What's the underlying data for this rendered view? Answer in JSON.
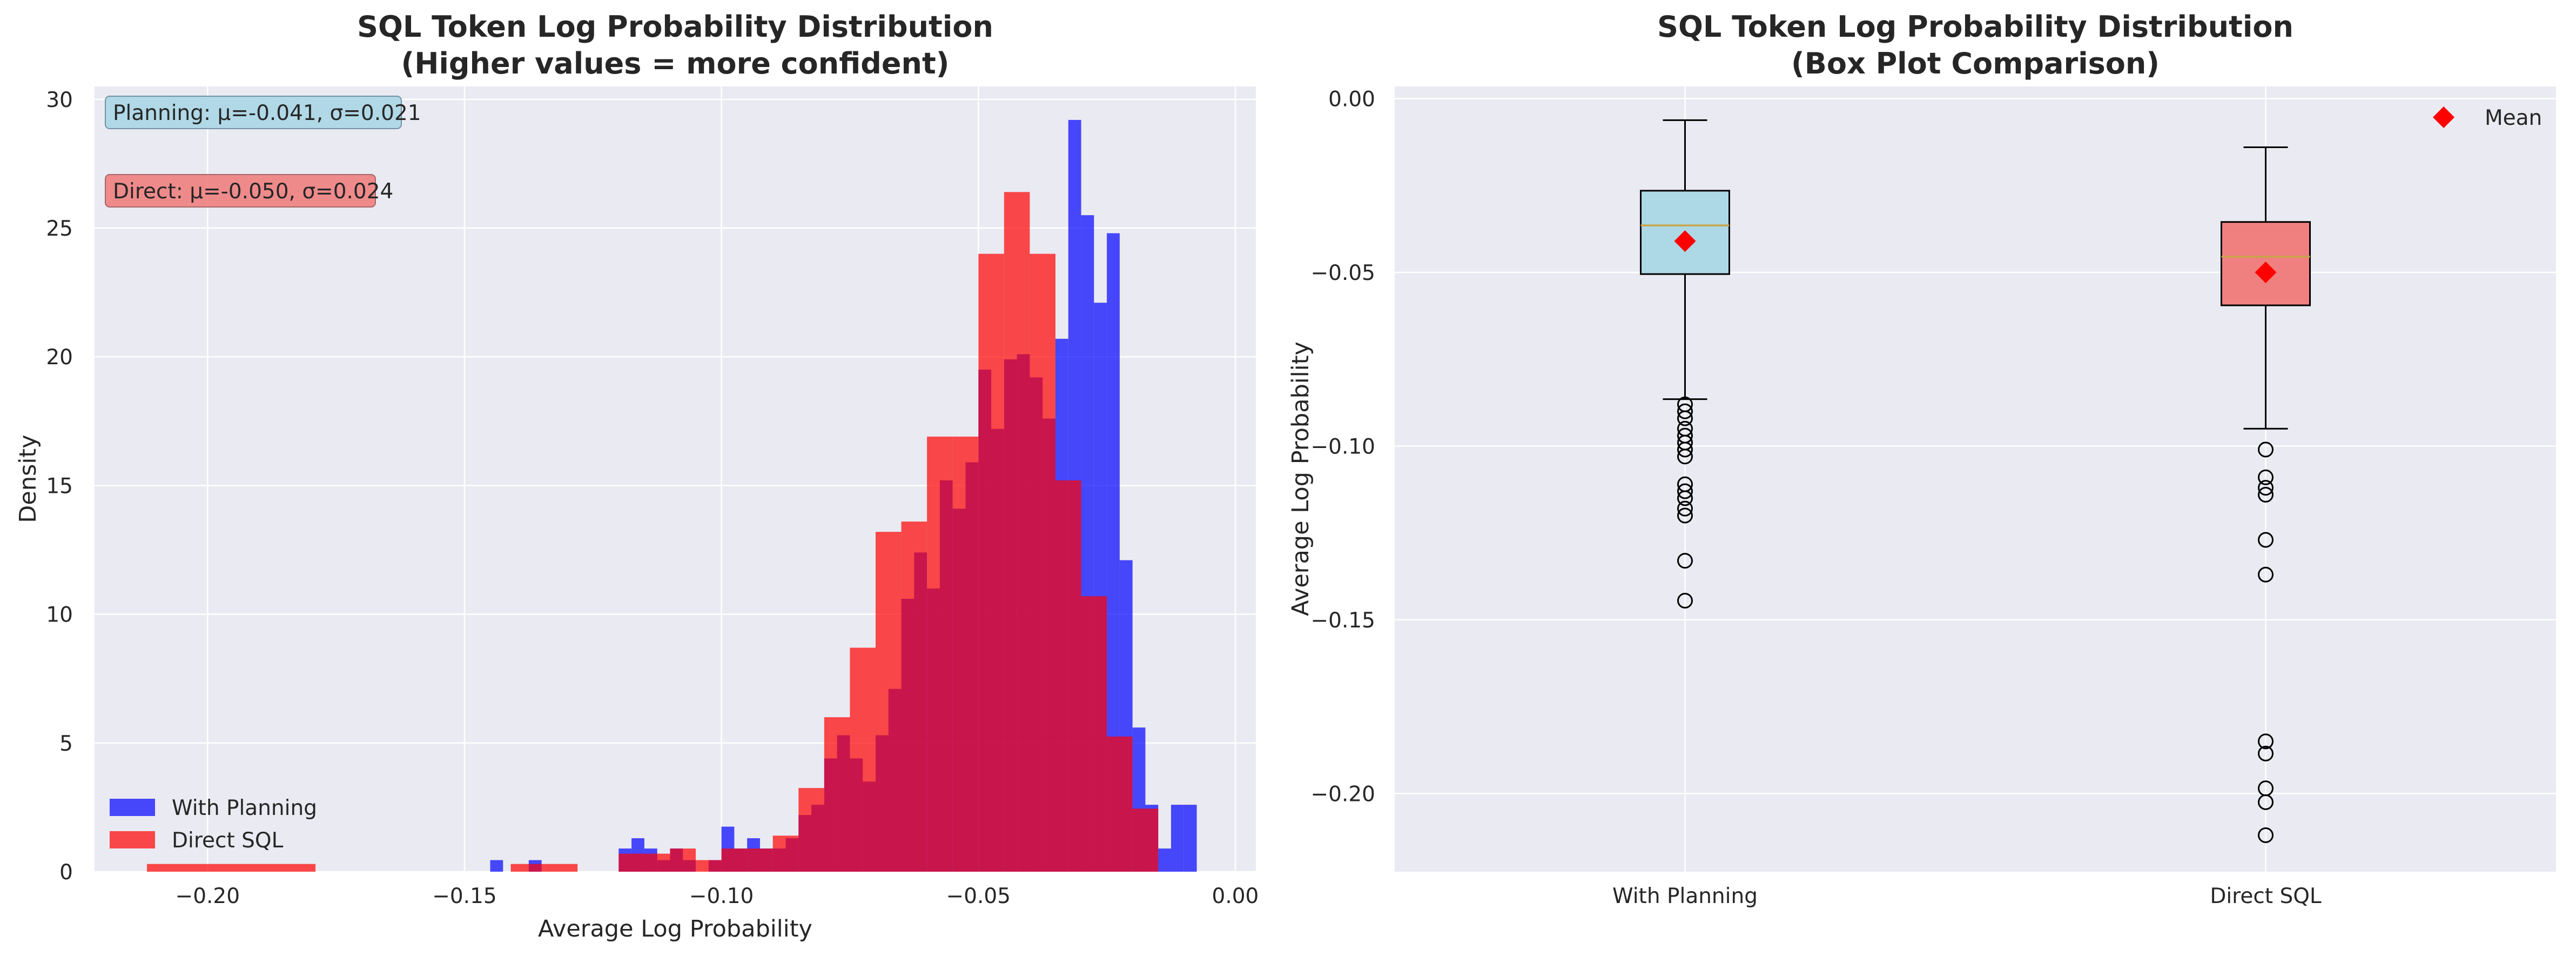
{
  "chart_data": [
    {
      "type": "histogram",
      "title": "SQL Token Log Probability Distribution",
      "subtitle": "(Higher values = more confident)",
      "xlabel": "Average Log Probability",
      "ylabel": "Density",
      "xlim": [
        -0.222,
        0.004
      ],
      "ylim": [
        0,
        30.5
      ],
      "xticks": [
        -0.2,
        -0.15,
        -0.1,
        -0.05,
        0.0
      ],
      "xtick_labels": [
        "−0.20",
        "−0.15",
        "−0.10",
        "−0.05",
        "0.00"
      ],
      "yticks": [
        0,
        5,
        10,
        15,
        20,
        25,
        30
      ],
      "ytick_labels": [
        "0",
        "5",
        "10",
        "15",
        "20",
        "25",
        "30"
      ],
      "grid": true,
      "legend_position": "lower-left",
      "annotations": [
        {
          "text": "Planning: μ=-0.041, σ=0.021",
          "color": "#add8e6"
        },
        {
          "text": "Direct: μ=-0.050, σ=0.024",
          "color": "#f08080"
        }
      ],
      "series": [
        {
          "name": "With Planning",
          "color": "#0000ff",
          "bins": [
            [
              -0.145,
              -0.1425,
              0.45
            ],
            [
              -0.1375,
              -0.135,
              0.45
            ],
            [
              -0.12,
              -0.1175,
              0.9
            ],
            [
              -0.1175,
              -0.115,
              1.3
            ],
            [
              -0.115,
              -0.1125,
              0.9
            ],
            [
              -0.1125,
              -0.11,
              0.45
            ],
            [
              -0.11,
              -0.1075,
              0.9
            ],
            [
              -0.1075,
              -0.105,
              0.45
            ],
            [
              -0.1025,
              -0.1,
              0.45
            ],
            [
              -0.1,
              -0.0975,
              1.75
            ],
            [
              -0.0975,
              -0.095,
              0.9
            ],
            [
              -0.095,
              -0.0925,
              1.3
            ],
            [
              -0.0925,
              -0.09,
              0.9
            ],
            [
              -0.09,
              -0.0875,
              0.9
            ],
            [
              -0.0875,
              -0.085,
              1.3
            ],
            [
              -0.085,
              -0.0825,
              2.2
            ],
            [
              -0.0825,
              -0.08,
              2.6
            ],
            [
              -0.08,
              -0.0775,
              4.4
            ],
            [
              -0.0775,
              -0.075,
              5.3
            ],
            [
              -0.075,
              -0.0725,
              4.4
            ],
            [
              -0.0725,
              -0.07,
              3.5
            ],
            [
              -0.07,
              -0.0675,
              5.3
            ],
            [
              -0.0675,
              -0.065,
              7.1
            ],
            [
              -0.065,
              -0.0625,
              10.6
            ],
            [
              -0.0625,
              -0.06,
              12.4
            ],
            [
              -0.06,
              -0.0575,
              11.0
            ],
            [
              -0.0575,
              -0.055,
              15.2
            ],
            [
              -0.055,
              -0.0525,
              14.1
            ],
            [
              -0.0525,
              -0.05,
              15.9
            ],
            [
              -0.05,
              -0.0475,
              19.5
            ],
            [
              -0.0475,
              -0.045,
              17.2
            ],
            [
              -0.045,
              -0.0425,
              19.9
            ],
            [
              -0.0425,
              -0.04,
              20.1
            ],
            [
              -0.04,
              -0.0375,
              19.2
            ],
            [
              -0.0375,
              -0.035,
              17.6
            ],
            [
              -0.035,
              -0.0325,
              20.7
            ],
            [
              -0.0325,
              -0.03,
              29.2
            ],
            [
              -0.03,
              -0.0275,
              25.5
            ],
            [
              -0.0275,
              -0.025,
              22.1
            ],
            [
              -0.025,
              -0.0225,
              24.8
            ],
            [
              -0.0225,
              -0.02,
              12.1
            ],
            [
              -0.02,
              -0.0175,
              5.6
            ],
            [
              -0.0175,
              -0.015,
              2.6
            ],
            [
              -0.015,
              -0.0125,
              0.9
            ],
            [
              -0.0125,
              -0.01,
              2.6
            ],
            [
              -0.01,
              -0.0075,
              2.6
            ]
          ]
        },
        {
          "name": "Direct SQL",
          "color": "#ff0000",
          "bins": [
            [
              -0.2118,
              -0.179,
              0.3
            ],
            [
              -0.141,
              -0.1345,
              0.3
            ],
            [
              -0.1345,
              -0.128,
              0.3
            ],
            [
              -0.12,
              -0.115,
              0.7
            ],
            [
              -0.115,
              -0.11,
              0.7
            ],
            [
              -0.11,
              -0.105,
              0.9
            ],
            [
              -0.105,
              -0.1,
              0.45
            ],
            [
              -0.1,
              -0.095,
              0.9
            ],
            [
              -0.095,
              -0.09,
              0.9
            ],
            [
              -0.09,
              -0.085,
              1.4
            ],
            [
              -0.085,
              -0.08,
              3.25
            ],
            [
              -0.08,
              -0.075,
              6.0
            ],
            [
              -0.075,
              -0.07,
              8.7
            ],
            [
              -0.07,
              -0.065,
              13.2
            ],
            [
              -0.065,
              -0.06,
              13.6
            ],
            [
              -0.06,
              -0.055,
              16.9
            ],
            [
              -0.055,
              -0.05,
              16.9
            ],
            [
              -0.05,
              -0.045,
              24.0
            ],
            [
              -0.045,
              -0.04,
              26.4
            ],
            [
              -0.04,
              -0.035,
              24.0
            ],
            [
              -0.035,
              -0.03,
              15.2
            ],
            [
              -0.03,
              -0.025,
              10.7
            ],
            [
              -0.025,
              -0.02,
              5.25
            ],
            [
              -0.02,
              -0.015,
              2.45
            ]
          ]
        }
      ]
    },
    {
      "type": "box",
      "title": "SQL Token Log Probability Distribution",
      "subtitle": "(Box Plot Comparison)",
      "xlabel": "",
      "ylabel": "Average Log Probability",
      "ylim": [
        -0.2225,
        0.0035
      ],
      "yticks": [
        0.0,
        -0.05,
        -0.1,
        -0.15,
        -0.2
      ],
      "ytick_labels": [
        "0.00",
        "−0.05",
        "−0.10",
        "−0.15",
        "−0.20"
      ],
      "grid": true,
      "legend_position": "top-right",
      "legend": [
        {
          "name": "Mean",
          "marker": "diamond",
          "color": "#ff0000"
        }
      ],
      "categories": [
        "With Planning",
        "Direct SQL"
      ],
      "boxes": [
        {
          "category": "With Planning",
          "fill": "#add8e6",
          "whisker_low": -0.0865,
          "q1": -0.0505,
          "median": -0.0365,
          "q3": -0.0265,
          "whisker_high": -0.0062,
          "mean": -0.041,
          "outliers": [
            -0.088,
            -0.09,
            -0.092,
            -0.095,
            -0.097,
            -0.099,
            -0.101,
            -0.103,
            -0.111,
            -0.113,
            -0.115,
            -0.118,
            -0.12,
            -0.133,
            -0.1445
          ]
        },
        {
          "category": "Direct SQL",
          "fill": "#f08080",
          "whisker_low": -0.095,
          "q1": -0.0595,
          "median": -0.0455,
          "q3": -0.0355,
          "whisker_high": -0.014,
          "mean": -0.05,
          "outliers": [
            -0.101,
            -0.109,
            -0.112,
            -0.114,
            -0.127,
            -0.137,
            -0.185,
            -0.1885,
            -0.1985,
            -0.2025,
            -0.212
          ]
        }
      ]
    }
  ]
}
